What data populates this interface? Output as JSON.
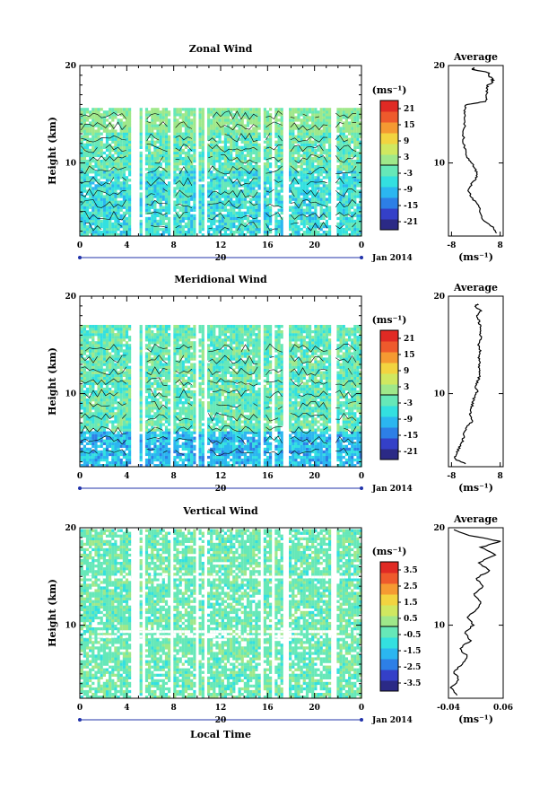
{
  "chart_data": [
    {
      "type": "heatmap",
      "title": "Zonal Wind",
      "ylabel": "Height (km)",
      "xlabel": "",
      "x_ticks": [
        "0",
        "4",
        "8",
        "12",
        "16",
        "20",
        "0"
      ],
      "xlim": [
        0,
        24
      ],
      "y_ticks": [
        "10",
        "20"
      ],
      "ylim": [
        2.5,
        20
      ],
      "date_row": {
        "label": "20",
        "month": "Jan 2014"
      },
      "colorbar": {
        "unit": "(ms⁻¹)",
        "ticks": [
          "21",
          "15",
          "9",
          "3",
          "-3",
          "-9",
          "-15",
          "-21"
        ],
        "range": [
          -24,
          24
        ]
      },
      "average": {
        "title": "Average",
        "x_ticks": [
          "-8",
          "8"
        ],
        "xlim": [
          -9,
          9
        ],
        "xlabel": "(ms⁻¹)",
        "y_ticks": [
          "10",
          "20"
        ],
        "profile": [
          [
            2.8,
            7.0
          ],
          [
            3.4,
            5.5
          ],
          [
            4.2,
            2.0
          ],
          [
            5.0,
            1.5
          ],
          [
            5.8,
            0.5
          ],
          [
            6.5,
            -1.5
          ],
          [
            7.3,
            -2.5
          ],
          [
            8.0,
            -1.0
          ],
          [
            8.6,
            0.5
          ],
          [
            9.2,
            0.0
          ],
          [
            9.8,
            -1.0
          ],
          [
            10.4,
            -2.5
          ],
          [
            11.2,
            -3.5
          ],
          [
            12.2,
            -4.0
          ],
          [
            13.2,
            -4.0
          ],
          [
            14.2,
            -3.5
          ],
          [
            15.0,
            -3.8
          ],
          [
            15.6,
            -3.5
          ],
          [
            16.0,
            -3.0
          ],
          [
            16.3,
            3.0
          ],
          [
            16.6,
            3.5
          ],
          [
            17.0,
            3.5
          ],
          [
            17.6,
            3.8
          ],
          [
            18.0,
            4.0
          ],
          [
            18.3,
            5.5
          ],
          [
            18.6,
            5.5
          ],
          [
            18.9,
            4.5
          ],
          [
            19.3,
            4.0
          ],
          [
            19.6,
            -1.0
          ],
          [
            19.8,
            -0.5
          ]
        ]
      }
    },
    {
      "type": "heatmap",
      "title": "Meridional Wind",
      "ylabel": "Height (km)",
      "xlabel": "",
      "x_ticks": [
        "0",
        "4",
        "8",
        "12",
        "16",
        "20",
        "0"
      ],
      "xlim": [
        0,
        24
      ],
      "y_ticks": [
        "10",
        "20"
      ],
      "ylim": [
        2.5,
        20
      ],
      "date_row": {
        "label": "20",
        "month": "Jan 2014"
      },
      "colorbar": {
        "unit": "(ms⁻¹)",
        "ticks": [
          "21",
          "15",
          "9",
          "3",
          "-3",
          "-9",
          "-15",
          "-21"
        ],
        "range": [
          -24,
          24
        ]
      },
      "average": {
        "title": "Average",
        "x_ticks": [
          "-8",
          "8"
        ],
        "xlim": [
          -9,
          9
        ],
        "xlabel": "(ms⁻¹)",
        "y_ticks": [
          "10",
          "20"
        ],
        "profile": [
          [
            2.8,
            -3.0
          ],
          [
            3.3,
            -7.0
          ],
          [
            3.8,
            -6.5
          ],
          [
            4.4,
            -5.5
          ],
          [
            5.0,
            -4.5
          ],
          [
            5.6,
            -4.0
          ],
          [
            6.2,
            -3.5
          ],
          [
            6.8,
            -2.5
          ],
          [
            7.2,
            -1.0
          ],
          [
            7.8,
            -2.0
          ],
          [
            8.4,
            -1.5
          ],
          [
            9.0,
            -1.0
          ],
          [
            9.6,
            -0.5
          ],
          [
            10.2,
            0.5
          ],
          [
            10.8,
            0.0
          ],
          [
            11.4,
            0.8
          ],
          [
            12.0,
            1.2
          ],
          [
            12.6,
            1.0
          ],
          [
            13.2,
            1.5
          ],
          [
            13.8,
            1.0
          ],
          [
            14.4,
            1.5
          ],
          [
            15.0,
            1.0
          ],
          [
            15.6,
            1.8
          ],
          [
            16.2,
            1.2
          ],
          [
            16.8,
            1.5
          ],
          [
            17.4,
            1.0
          ],
          [
            18.0,
            0.5
          ],
          [
            18.5,
            1.5
          ],
          [
            18.9,
            0.0
          ],
          [
            19.2,
            0.5
          ]
        ]
      }
    },
    {
      "type": "heatmap",
      "title": "Vertical Wind",
      "ylabel": "Height (km)",
      "xlabel": "Local Time",
      "x_ticks": [
        "0",
        "4",
        "8",
        "12",
        "16",
        "20",
        "0"
      ],
      "xlim": [
        0,
        24
      ],
      "y_ticks": [
        "10",
        "20"
      ],
      "ylim": [
        2.5,
        20
      ],
      "date_row": {
        "label": "20",
        "month": "Jan 2014"
      },
      "colorbar": {
        "unit": "(ms⁻¹)",
        "ticks": [
          "3.5",
          "2.5",
          "1.5",
          "0.5",
          "-0.5",
          "-1.5",
          "-2.5",
          "-3.5"
        ],
        "range": [
          -4,
          4
        ]
      },
      "average": {
        "title": "Average",
        "x_ticks": [
          "-0.04",
          "0.06"
        ],
        "xlim": [
          -0.04,
          0.06
        ],
        "xlabel": "(ms⁻¹)",
        "y_ticks": [
          "10",
          "20"
        ],
        "profile": [
          [
            2.8,
            -0.025
          ],
          [
            3.6,
            -0.035
          ],
          [
            4.4,
            -0.02
          ],
          [
            5.2,
            -0.03
          ],
          [
            6.0,
            -0.015
          ],
          [
            6.8,
            -0.005
          ],
          [
            7.6,
            -0.02
          ],
          [
            8.4,
            0.0
          ],
          [
            9.2,
            -0.01
          ],
          [
            10.0,
            0.005
          ],
          [
            10.8,
            -0.005
          ],
          [
            11.6,
            0.01
          ],
          [
            12.4,
            0.02
          ],
          [
            13.2,
            0.005
          ],
          [
            14.0,
            0.025
          ],
          [
            14.8,
            0.01
          ],
          [
            15.6,
            0.035
          ],
          [
            16.4,
            0.015
          ],
          [
            17.2,
            0.045
          ],
          [
            18.0,
            0.02
          ],
          [
            18.6,
            0.055
          ],
          [
            19.2,
            0.0
          ],
          [
            19.8,
            -0.03
          ]
        ]
      }
    }
  ],
  "colormap": [
    "#2b2a86",
    "#3440c8",
    "#2d7fe6",
    "#2bb6f0",
    "#33e0e0",
    "#66e8b8",
    "#9fe88a",
    "#d0e860",
    "#f2d440",
    "#f59a32",
    "#ee5a2c",
    "#e02a24"
  ]
}
